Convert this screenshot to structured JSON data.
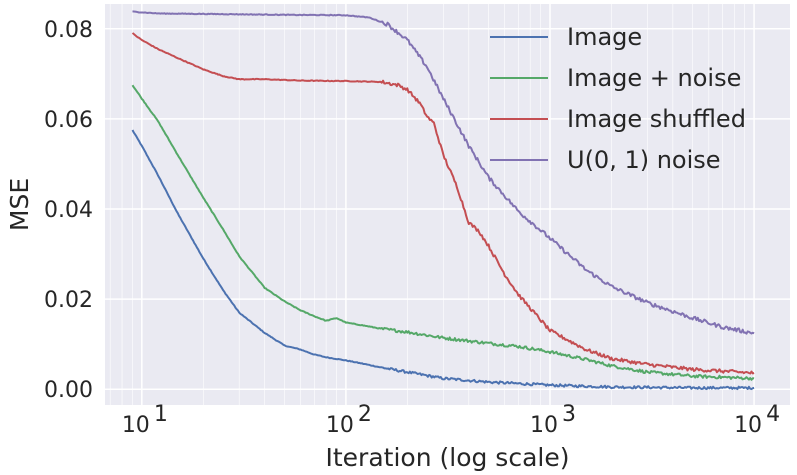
{
  "chart_data": {
    "type": "line",
    "xlabel": "Iteration (log scale)",
    "ylabel": "MSE",
    "x_scale": "log",
    "xlim": [
      6.6,
      15000
    ],
    "ylim": [
      -0.0035,
      0.0855
    ],
    "grid": true,
    "legend_position": "top-right",
    "background_color": "#eaeaf2",
    "x_ticks": [
      {
        "value": 10,
        "base": "10",
        "exp": "1"
      },
      {
        "value": 100,
        "base": "10",
        "exp": "2"
      },
      {
        "value": 1000,
        "base": "10",
        "exp": "3"
      },
      {
        "value": 10000,
        "base": "10",
        "exp": "4"
      }
    ],
    "y_ticks": [
      {
        "value": 0.0,
        "label": "0.00"
      },
      {
        "value": 0.02,
        "label": "0.02"
      },
      {
        "value": 0.04,
        "label": "0.04"
      },
      {
        "value": 0.06,
        "label": "0.06"
      },
      {
        "value": 0.08,
        "label": "0.08"
      }
    ],
    "series": [
      {
        "name": "Image",
        "color": "#4c72b0",
        "points": [
          [
            9,
            0.0575
          ],
          [
            10,
            0.054
          ],
          [
            12,
            0.0475
          ],
          [
            15,
            0.039
          ],
          [
            20,
            0.029
          ],
          [
            25,
            0.022
          ],
          [
            30,
            0.017
          ],
          [
            40,
            0.0125
          ],
          [
            50,
            0.0097
          ],
          [
            60,
            0.0088
          ],
          [
            70,
            0.0077
          ],
          [
            80,
            0.0071
          ],
          [
            100,
            0.0064
          ],
          [
            120,
            0.0057
          ],
          [
            150,
            0.0048
          ],
          [
            200,
            0.0038
          ],
          [
            300,
            0.0024
          ],
          [
            500,
            0.0016
          ],
          [
            1000,
            0.0009
          ],
          [
            2000,
            0.0005
          ],
          [
            5000,
            0.0003
          ],
          [
            10000,
            0.0003
          ]
        ]
      },
      {
        "name": "Image + noise",
        "color": "#55a868",
        "points": [
          [
            9,
            0.0675
          ],
          [
            10,
            0.0645
          ],
          [
            12,
            0.0595
          ],
          [
            15,
            0.052
          ],
          [
            20,
            0.0425
          ],
          [
            25,
            0.0355
          ],
          [
            30,
            0.0295
          ],
          [
            40,
            0.0225
          ],
          [
            50,
            0.0195
          ],
          [
            60,
            0.0175
          ],
          [
            70,
            0.0162
          ],
          [
            80,
            0.0152
          ],
          [
            90,
            0.0158
          ],
          [
            100,
            0.0148
          ],
          [
            120,
            0.0142
          ],
          [
            150,
            0.0134
          ],
          [
            200,
            0.0127
          ],
          [
            300,
            0.0114
          ],
          [
            500,
            0.0102
          ],
          [
            700,
            0.0095
          ],
          [
            1000,
            0.0083
          ],
          [
            1500,
            0.0066
          ],
          [
            2000,
            0.0052
          ],
          [
            3000,
            0.0038
          ],
          [
            5000,
            0.0029
          ],
          [
            10000,
            0.0024
          ]
        ]
      },
      {
        "name": "Image shuffled",
        "color": "#c44e52",
        "points": [
          [
            9,
            0.079
          ],
          [
            10,
            0.0775
          ],
          [
            12,
            0.0755
          ],
          [
            15,
            0.0735
          ],
          [
            20,
            0.071
          ],
          [
            25,
            0.0695
          ],
          [
            30,
            0.0688
          ],
          [
            40,
            0.0688
          ],
          [
            60,
            0.0685
          ],
          [
            100,
            0.0684
          ],
          [
            150,
            0.0682
          ],
          [
            180,
            0.0675
          ],
          [
            200,
            0.0665
          ],
          [
            230,
            0.0635
          ],
          [
            250,
            0.0605
          ],
          [
            270,
            0.059
          ],
          [
            300,
            0.052
          ],
          [
            350,
            0.045
          ],
          [
            400,
            0.037
          ],
          [
            450,
            0.035
          ],
          [
            500,
            0.0318
          ],
          [
            600,
            0.0255
          ],
          [
            700,
            0.021
          ],
          [
            800,
            0.018
          ],
          [
            1000,
            0.013
          ],
          [
            1500,
            0.0088
          ],
          [
            2000,
            0.0068
          ],
          [
            3000,
            0.0055
          ],
          [
            5000,
            0.0044
          ],
          [
            10000,
            0.0036
          ]
        ]
      },
      {
        "name": "U(0, 1) noise",
        "color": "#8172b2",
        "points": [
          [
            9,
            0.0838
          ],
          [
            12,
            0.0834
          ],
          [
            20,
            0.0833
          ],
          [
            50,
            0.0831
          ],
          [
            100,
            0.083
          ],
          [
            130,
            0.0825
          ],
          [
            160,
            0.081
          ],
          [
            200,
            0.0775
          ],
          [
            250,
            0.0715
          ],
          [
            300,
            0.0645
          ],
          [
            400,
            0.054
          ],
          [
            500,
            0.047
          ],
          [
            700,
            0.0395
          ],
          [
            1000,
            0.0335
          ],
          [
            1500,
            0.0265
          ],
          [
            2000,
            0.0228
          ],
          [
            3000,
            0.0192
          ],
          [
            5000,
            0.0158
          ],
          [
            7000,
            0.0138
          ],
          [
            10000,
            0.0124
          ]
        ]
      }
    ]
  }
}
